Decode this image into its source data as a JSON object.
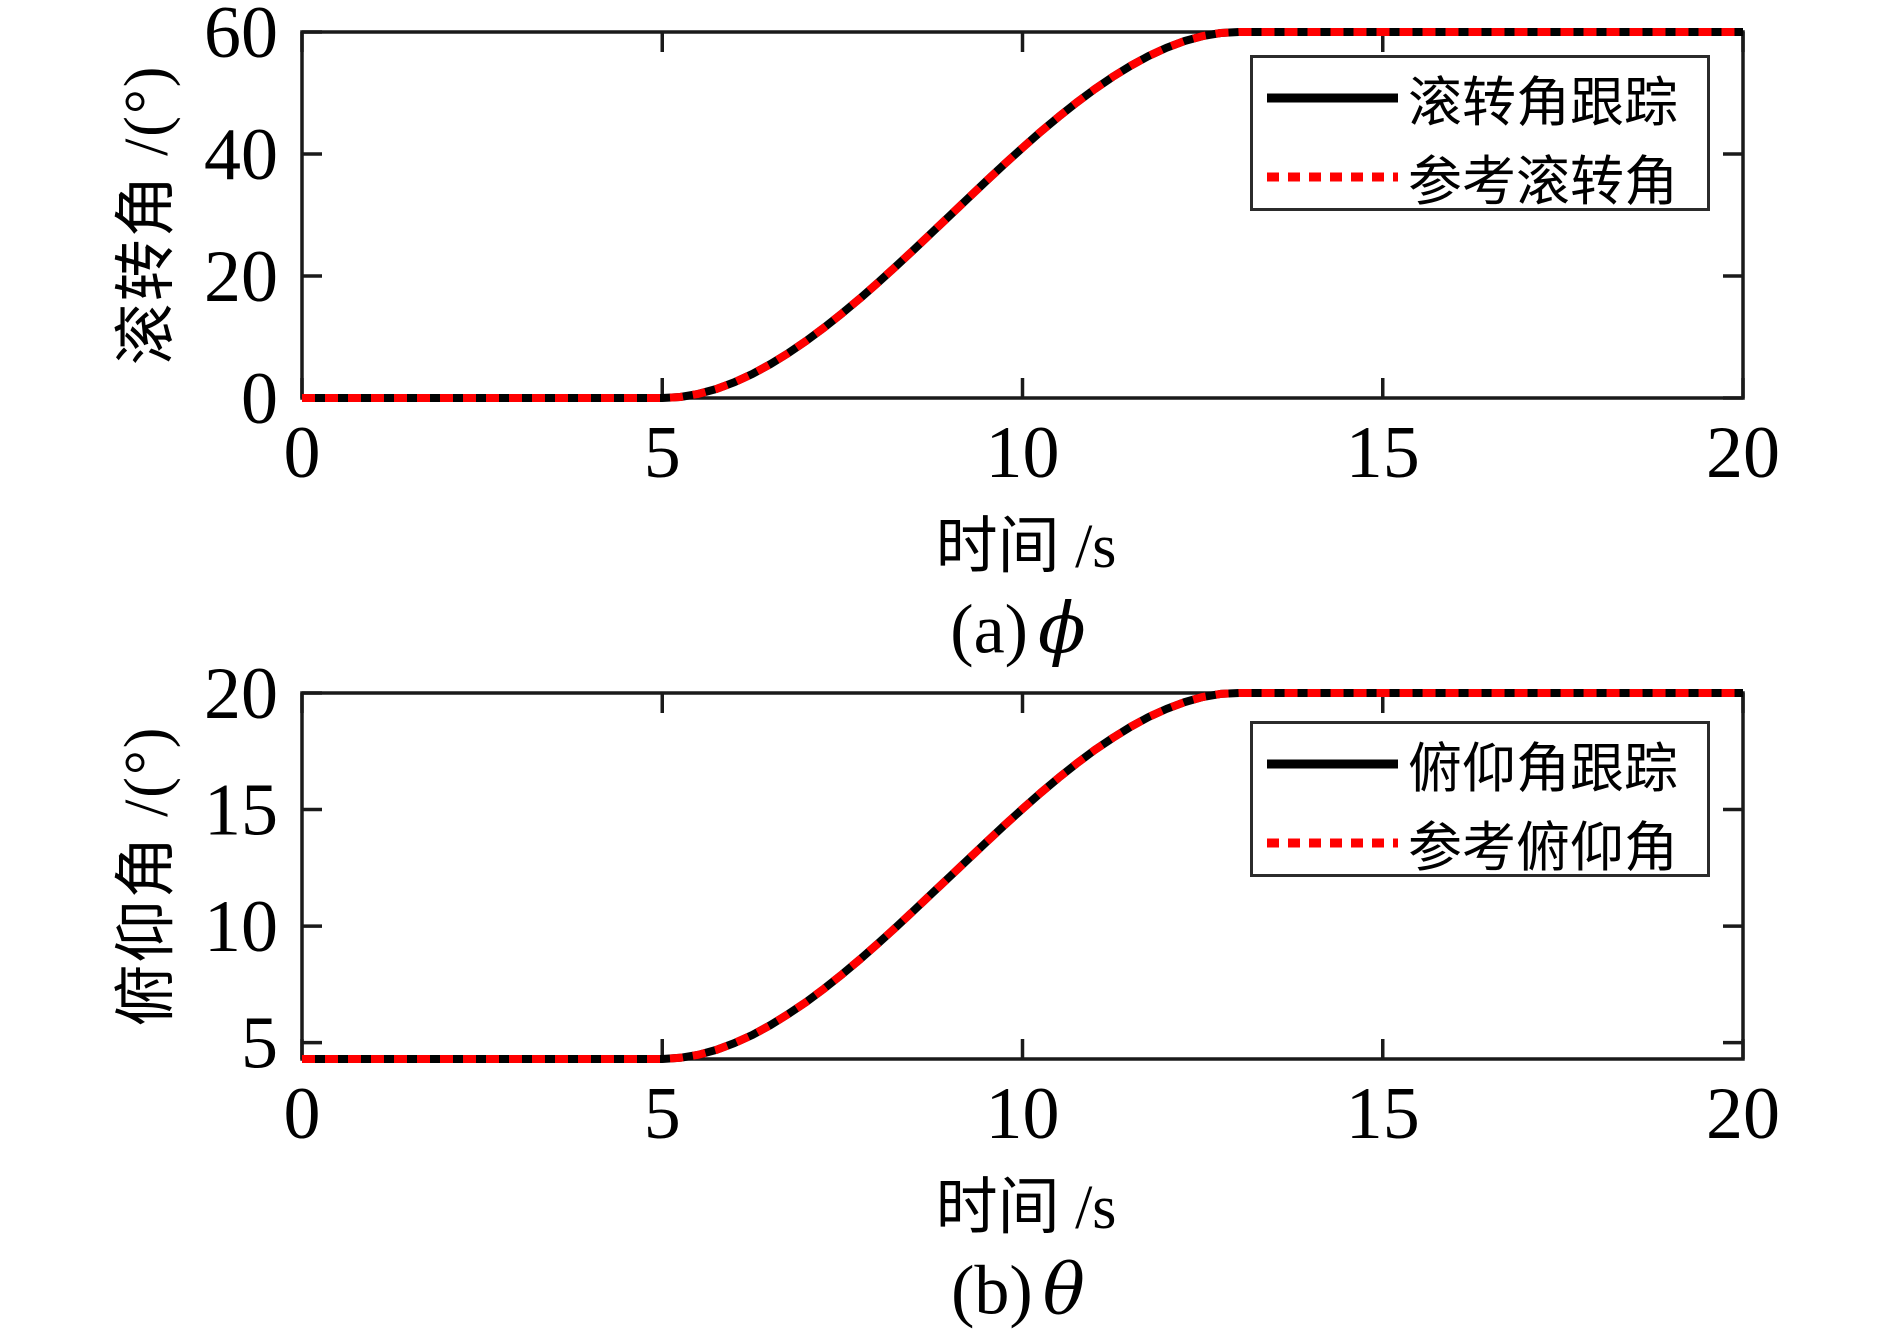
{
  "chart_data": [
    {
      "type": "line",
      "xlabel": "时间 /s",
      "ylabel": "滚转角 /(°)",
      "caption_prefix": "(a)",
      "caption_symbol": "ϕ",
      "xlim": [
        0,
        20
      ],
      "ylim": [
        0,
        60
      ],
      "xticks": [
        0,
        5,
        10,
        15,
        20
      ],
      "yticks": [
        0,
        20,
        40,
        60
      ],
      "grid": false,
      "legend_position": "upper-right",
      "x": [
        0,
        1,
        2,
        3,
        4,
        4.5,
        5,
        5.25,
        5.5,
        5.75,
        6,
        6.25,
        6.5,
        6.75,
        7,
        7.25,
        7.5,
        7.75,
        8,
        8.25,
        8.5,
        8.75,
        9,
        9.25,
        9.5,
        9.75,
        10,
        10.25,
        10.5,
        10.75,
        11,
        11.25,
        11.5,
        11.75,
        12,
        12.25,
        12.5,
        12.75,
        13,
        13.5,
        14,
        15,
        16,
        17,
        18,
        19,
        20
      ],
      "series": [
        {
          "name": "滚转角跟踪",
          "color": "#000000",
          "dash": "solid",
          "values": [
            0,
            0,
            0,
            0,
            0,
            0,
            0,
            0.17,
            0.67,
            1.48,
            2.58,
            3.94,
            5.54,
            7.36,
            9.38,
            11.57,
            13.92,
            16.38,
            18.98,
            21.66,
            24.4,
            27.19,
            30,
            32.81,
            35.6,
            38.34,
            41.02,
            43.62,
            46.08,
            48.43,
            50.62,
            52.64,
            54.46,
            56.06,
            57.42,
            58.52,
            59.33,
            59.83,
            60,
            60,
            60,
            60,
            60,
            60,
            60,
            60,
            60
          ]
        },
        {
          "name": "参考滚转角",
          "color": "#ff0000",
          "dash": "dashed",
          "values": [
            0,
            0,
            0,
            0,
            0,
            0,
            0,
            0.17,
            0.67,
            1.48,
            2.58,
            3.94,
            5.54,
            7.36,
            9.38,
            11.57,
            13.92,
            16.38,
            18.98,
            21.66,
            24.4,
            27.19,
            30,
            32.81,
            35.6,
            38.34,
            41.02,
            43.62,
            46.08,
            48.43,
            50.62,
            52.64,
            54.46,
            56.06,
            57.42,
            58.52,
            59.33,
            59.83,
            60,
            60,
            60,
            60,
            60,
            60,
            60,
            60,
            60
          ]
        }
      ]
    },
    {
      "type": "line",
      "xlabel": "时间 /s",
      "ylabel": "俯仰角 /(°)",
      "caption_prefix": "(b)",
      "caption_symbol": "θ",
      "xlim": [
        0,
        20
      ],
      "ylim": [
        4.3,
        20
      ],
      "xticks": [
        0,
        5,
        10,
        15,
        20
      ],
      "yticks": [
        5,
        10,
        15,
        20
      ],
      "grid": false,
      "legend_position": "upper-right",
      "x": [
        0,
        1,
        2,
        3,
        4,
        4.5,
        5,
        5.25,
        5.5,
        5.75,
        6,
        6.25,
        6.5,
        6.75,
        7,
        7.25,
        7.5,
        7.75,
        8,
        8.25,
        8.5,
        8.75,
        9,
        9.25,
        9.5,
        9.75,
        10,
        10.25,
        10.5,
        10.75,
        11,
        11.25,
        11.5,
        11.75,
        12,
        12.25,
        12.5,
        12.75,
        13,
        13.5,
        14,
        15,
        16,
        17,
        18,
        19,
        20
      ],
      "series": [
        {
          "name": "俯仰角跟踪",
          "color": "#000000",
          "dash": "solid",
          "values": [
            4.3,
            4.3,
            4.3,
            4.3,
            4.3,
            4.3,
            4.3,
            4.35,
            4.48,
            4.69,
            4.98,
            5.33,
            5.75,
            6.23,
            6.75,
            7.33,
            7.94,
            8.59,
            9.27,
            9.97,
            10.69,
            11.42,
            12.15,
            12.88,
            13.61,
            14.33,
            15.03,
            15.71,
            16.36,
            16.97,
            17.55,
            18.07,
            18.55,
            18.97,
            19.32,
            19.61,
            19.83,
            19.96,
            20,
            20,
            20,
            20,
            20,
            20,
            20,
            20,
            20
          ]
        },
        {
          "name": "参考俯仰角",
          "color": "#ff0000",
          "dash": "dashed",
          "values": [
            4.3,
            4.3,
            4.3,
            4.3,
            4.3,
            4.3,
            4.3,
            4.35,
            4.48,
            4.69,
            4.98,
            5.33,
            5.75,
            6.23,
            6.75,
            7.33,
            7.94,
            8.59,
            9.27,
            9.97,
            10.69,
            11.42,
            12.15,
            12.88,
            13.61,
            14.33,
            15.03,
            15.71,
            16.36,
            16.97,
            17.55,
            18.07,
            18.55,
            18.97,
            19.32,
            19.61,
            19.83,
            19.96,
            20,
            20,
            20,
            20,
            20,
            20,
            20,
            20,
            20
          ]
        }
      ]
    }
  ]
}
